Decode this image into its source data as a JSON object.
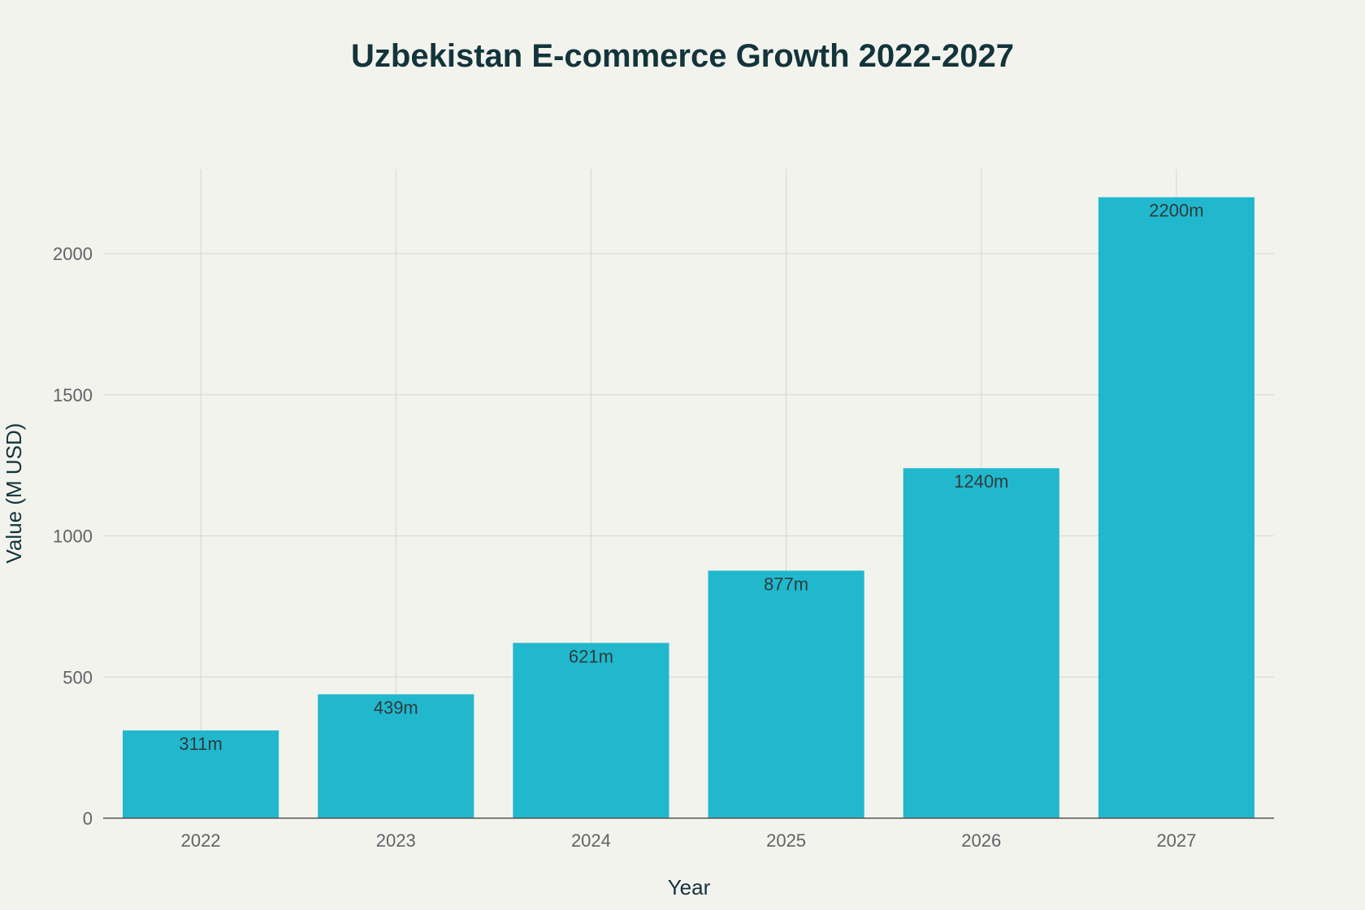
{
  "chart_data": {
    "type": "bar",
    "title": "Uzbekistan E-commerce Growth 2022-2027",
    "xlabel": "Year",
    "ylabel": "Value (M USD)",
    "categories": [
      "2022",
      "2023",
      "2024",
      "2025",
      "2026",
      "2027"
    ],
    "values": [
      311,
      439,
      621,
      877,
      1240,
      2200
    ],
    "data_labels": [
      "311m",
      "439m",
      "621m",
      "877m",
      "1240m",
      "2200m"
    ],
    "ylim": [
      0,
      2300
    ],
    "yticks": [
      0,
      500,
      1000,
      1500,
      2000
    ],
    "grid": true,
    "colors": {
      "bar": "#21b8cd",
      "background": "#f3f3ee"
    }
  }
}
